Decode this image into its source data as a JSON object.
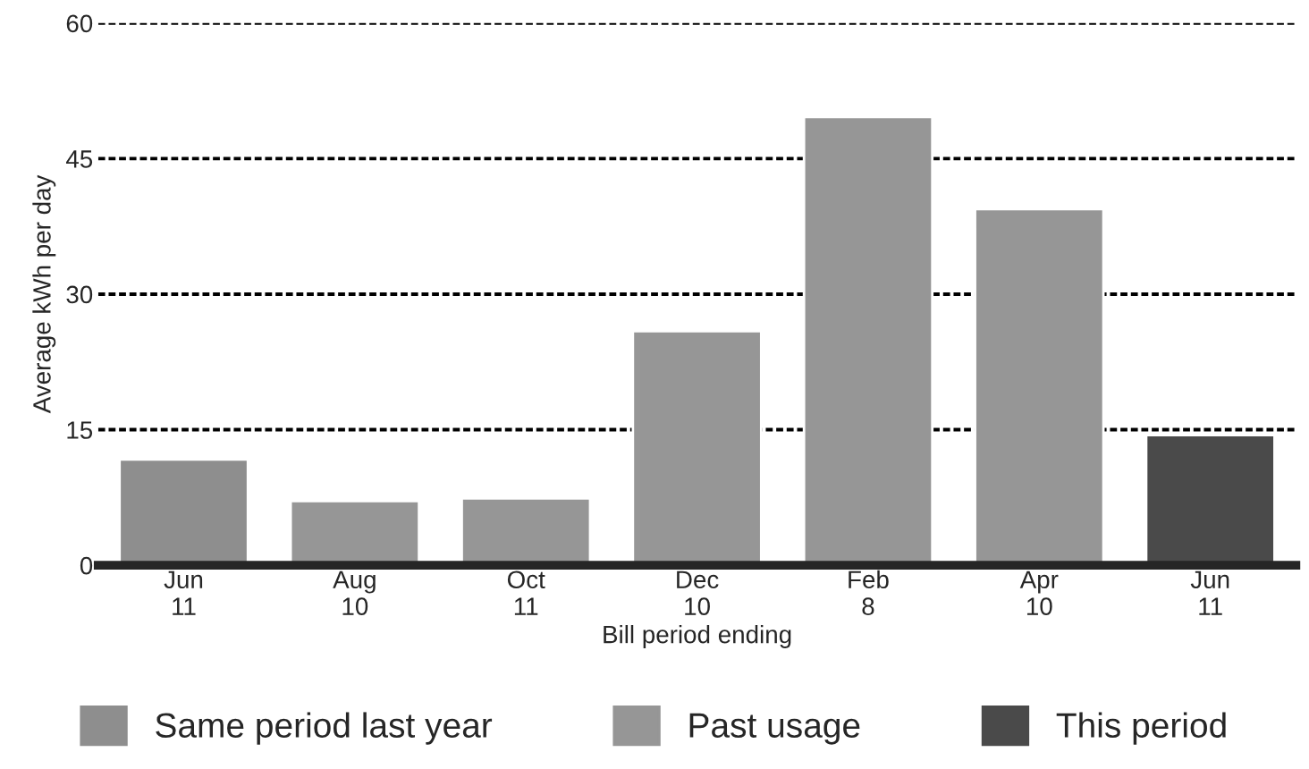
{
  "chart_data": {
    "type": "bar",
    "xlabel": "Bill period ending",
    "ylabel": "Average kWh per day",
    "categories": [
      "Jun\n11",
      "Aug\n10",
      "Oct\n11",
      "Dec\n10",
      "Feb\n8",
      "Apr\n10",
      "Jun\n11"
    ],
    "series": [
      {
        "name": "Same period last year",
        "color": "#8e8e8e",
        "values": [
          11.7,
          null,
          null,
          null,
          null,
          null,
          null
        ]
      },
      {
        "name": "Past usage",
        "color": "#969696",
        "values": [
          null,
          7.1,
          7.4,
          25.9,
          49.6,
          39.4,
          null
        ]
      },
      {
        "name": "This period",
        "color": "#4a4a4a",
        "values": [
          null,
          null,
          null,
          null,
          null,
          null,
          14.4
        ]
      }
    ],
    "ylim": [
      0,
      60
    ],
    "yticks": [
      0,
      15,
      30,
      45,
      60
    ],
    "grid": "y",
    "legend": "bottom"
  }
}
